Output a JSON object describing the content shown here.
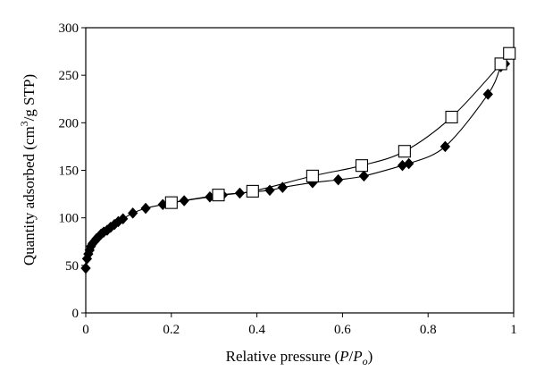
{
  "chart_data": {
    "type": "scatter",
    "title": "",
    "xlabel": {
      "text": "Relative pressure (",
      "var": "P",
      "slash": "/",
      "var2": "P",
      "sub": "o",
      "close": ")"
    },
    "ylabel": {
      "text": "Quantity adsorbed (cm",
      "sup": "3",
      "rest": "/g STP)"
    },
    "xlim": [
      0,
      1
    ],
    "ylim": [
      0,
      300
    ],
    "xticks": [
      0,
      0.2,
      0.4,
      0.6,
      0.8,
      1
    ],
    "xtick_labels": [
      "0",
      "0.2",
      "0.4",
      "0.6",
      "0.8",
      "1"
    ],
    "yticks": [
      0,
      50,
      100,
      150,
      200,
      250,
      300
    ],
    "ytick_labels": [
      "0",
      "50",
      "100",
      "150",
      "200",
      "250",
      "300"
    ],
    "grid": false,
    "legend": "none",
    "series": [
      {
        "marker": "filled-diamond",
        "color": "#000000",
        "x": [
          0.0,
          0.003,
          0.006,
          0.009,
          0.012,
          0.016,
          0.02,
          0.025,
          0.03,
          0.036,
          0.042,
          0.05,
          0.058,
          0.067,
          0.076,
          0.087,
          0.11,
          0.14,
          0.18,
          0.23,
          0.29,
          0.32,
          0.36,
          0.43,
          0.46,
          0.53,
          0.59,
          0.65,
          0.74,
          0.755,
          0.84,
          0.94,
          0.97,
          0.98
        ],
        "y": [
          47,
          57,
          62,
          66,
          70,
          73,
          75,
          78,
          80,
          83,
          85,
          87,
          90,
          93,
          96,
          99,
          105,
          110,
          114,
          118,
          122,
          124,
          126,
          129,
          132,
          137,
          140,
          144,
          155,
          157,
          175,
          230,
          259,
          262
        ]
      },
      {
        "marker": "open-square",
        "color": "#000000",
        "x": [
          0.2,
          0.31,
          0.39,
          0.53,
          0.645,
          0.745,
          0.855,
          0.97,
          0.99
        ],
        "y": [
          116,
          124,
          128,
          144,
          155,
          170,
          206,
          262,
          273
        ]
      }
    ]
  }
}
